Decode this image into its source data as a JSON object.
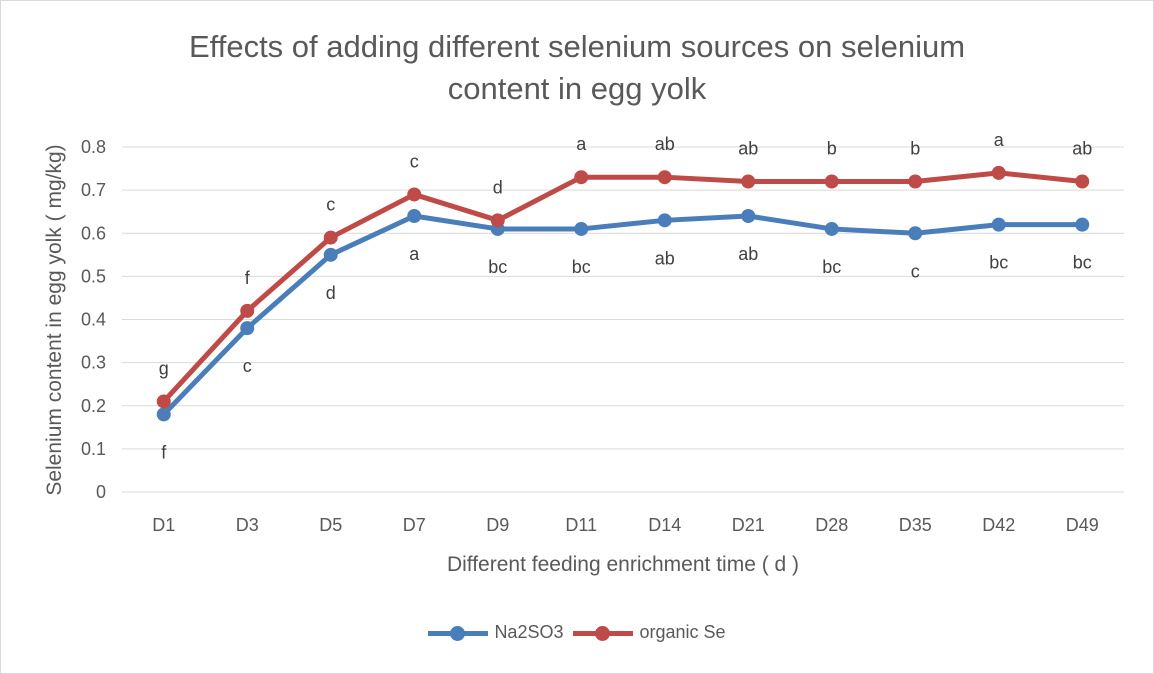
{
  "chart_data": {
    "type": "line",
    "title": "Effects of adding different selenium sources on selenium\ncontent in egg yolk",
    "xlabel": "Different feeding enrichment time ( d )",
    "ylabel": "Selenium content in egg yolk ( mg/kg)",
    "ylim": [
      0,
      0.8
    ],
    "yticks": [
      "0",
      "0.1",
      "0.2",
      "0.3",
      "0.4",
      "0.5",
      "0.6",
      "0.7",
      "0.8"
    ],
    "categories": [
      "D1",
      "D3",
      "D5",
      "D7",
      "D9",
      "D11",
      "D14",
      "D21",
      "D28",
      "D35",
      "D42",
      "D49"
    ],
    "grid": true,
    "legend_position": "bottom",
    "series": [
      {
        "name": "Na2SO3",
        "color": "#4a7ebb",
        "values": [
          0.18,
          0.38,
          0.55,
          0.64,
          0.61,
          0.61,
          0.63,
          0.64,
          0.61,
          0.6,
          0.62,
          0.62
        ],
        "labels": [
          "f",
          "c",
          "d",
          "a",
          "bc",
          "bc",
          "ab",
          "ab",
          "bc",
          "c",
          "bc",
          "bc"
        ],
        "label_side": "below"
      },
      {
        "name": "organic Se",
        "color": "#be4b48",
        "values": [
          0.21,
          0.42,
          0.59,
          0.69,
          0.63,
          0.73,
          0.73,
          0.72,
          0.72,
          0.72,
          0.74,
          0.72
        ],
        "labels": [
          "g",
          "f",
          "c",
          "c",
          "d",
          "a",
          "ab",
          "ab",
          "b",
          "b",
          "a",
          "ab"
        ],
        "label_side": "above"
      }
    ]
  }
}
